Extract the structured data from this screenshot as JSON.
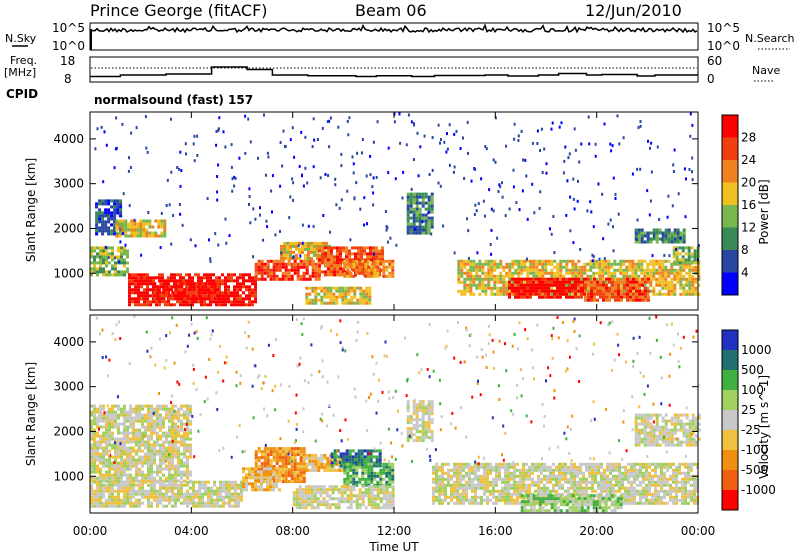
{
  "header": {
    "station": "Prince George (fitACF)",
    "beam": "Beam 06",
    "date": "12/Jun/2010"
  },
  "left_labels": {
    "nsky": "N.Sky",
    "freq": "Freq.",
    "freq_unit": "[MHz]",
    "cpid": "CPID"
  },
  "right_labels": {
    "nsearch": "N.Search",
    "nave": "Nave"
  },
  "cpid_text": "normalsound (fast) 157",
  "colors": {
    "power": [
      "#0000ff",
      "#2747a0",
      "#3a8a57",
      "#78b64e",
      "#f0c020",
      "#f08020",
      "#f04010",
      "#ff0000"
    ],
    "velocity": [
      "#ff0000",
      "#f06010",
      "#f09010",
      "#f0c040",
      "#c8c8c8",
      "#a0d060",
      "#40b040",
      "#207070",
      "#2030c0"
    ]
  },
  "chart_data": [
    {
      "type": "line",
      "panel": "noise",
      "y_ticks_left": [
        "10^5",
        "10^0"
      ],
      "y_ticks_right": [
        "10^5",
        "10^0"
      ],
      "x_range": [
        0,
        24
      ]
    },
    {
      "type": "line",
      "panel": "frequency",
      "y_ticks_left": [
        "18",
        "8"
      ],
      "y_ticks_right": [
        "60",
        "0"
      ],
      "x_range": [
        0,
        24
      ],
      "ylim_left": [
        8,
        18
      ],
      "series": [
        {
          "x": [
            0,
            1.2,
            1.2,
            3.0,
            3.0,
            4.8,
            4.8,
            6.2,
            6.2,
            7.2,
            7.2,
            8.6,
            8.6,
            10.5,
            10.5,
            11.3,
            11.3,
            12.7,
            12.7,
            13.6,
            13.6,
            15.6,
            15.6,
            16.5,
            16.5,
            17.7,
            17.7,
            18.5,
            18.5,
            19.6,
            19.6,
            20.2,
            20.2,
            21.6,
            21.6,
            22.3,
            22.3,
            24
          ],
          "values": [
            10.2,
            10.2,
            10.8,
            10.8,
            11.2,
            11.2,
            14.0,
            14.0,
            13.0,
            13.0,
            10.8,
            10.8,
            10.5,
            10.5,
            10.2,
            10.2,
            10.5,
            10.5,
            10.2,
            10.2,
            10.6,
            10.6,
            10.8,
            10.8,
            10.4,
            10.4,
            10.8,
            10.8,
            11.4,
            11.4,
            10.8,
            10.8,
            11.0,
            11.0,
            10.4,
            10.4,
            10.8,
            10.8
          ]
        }
      ]
    },
    {
      "type": "heatmap",
      "panel": "power",
      "xlabel": "",
      "ylabel": "Slant Range [km]",
      "x_ticks": [],
      "y_ticks": [
        "1000",
        "2000",
        "3000",
        "4000"
      ],
      "ylim": [
        180,
        4600
      ],
      "x_range": [
        0,
        24
      ],
      "colorbar_label": "Power [dB]",
      "colorbar_ticks": [
        "4",
        "8",
        "12",
        "16",
        "20",
        "24",
        "28"
      ],
      "regions": [
        {
          "x": [
            0.0,
            1.5
          ],
          "y": [
            950,
            1600
          ],
          "level": 3
        },
        {
          "x": [
            0.2,
            1.2
          ],
          "y": [
            1900,
            2650
          ],
          "level": 1
        },
        {
          "x": [
            1.0,
            3.0
          ],
          "y": [
            1800,
            2200
          ],
          "level": 4
        },
        {
          "x": [
            1.5,
            6.5
          ],
          "y": [
            300,
            1000
          ],
          "level": 7
        },
        {
          "x": [
            2.5,
            5.0
          ],
          "y": [
            400,
            800
          ],
          "level": 7
        },
        {
          "x": [
            6.5,
            9.0
          ],
          "y": [
            850,
            1300
          ],
          "level": 6
        },
        {
          "x": [
            7.5,
            9.5
          ],
          "y": [
            1350,
            1700
          ],
          "level": 4
        },
        {
          "x": [
            9.0,
            11.5
          ],
          "y": [
            950,
            1600
          ],
          "level": 6
        },
        {
          "x": [
            10.0,
            12.0
          ],
          "y": [
            900,
            1300
          ],
          "level": 5
        },
        {
          "x": [
            8.5,
            11.0
          ],
          "y": [
            350,
            700
          ],
          "level": 4
        },
        {
          "x": [
            12.5,
            13.5
          ],
          "y": [
            1900,
            2800
          ],
          "level": 2
        },
        {
          "x": [
            14.5,
            24.0
          ],
          "y": [
            500,
            1300
          ],
          "level": 4
        },
        {
          "x": [
            16.5,
            19.5
          ],
          "y": [
            450,
            900
          ],
          "level": 7
        },
        {
          "x": [
            19.5,
            22.0
          ],
          "y": [
            400,
            900
          ],
          "level": 6
        },
        {
          "x": [
            21.5,
            23.5
          ],
          "y": [
            1700,
            2000
          ],
          "level": 2
        },
        {
          "x": [
            23.0,
            24.0
          ],
          "y": [
            1200,
            1600
          ],
          "level": 3
        }
      ]
    },
    {
      "type": "heatmap",
      "panel": "velocity",
      "xlabel": "Time UT",
      "ylabel": "Slant Range [km]",
      "x_ticks": [
        "00:00",
        "04:00",
        "08:00",
        "12:00",
        "16:00",
        "20:00",
        "00:00"
      ],
      "y_ticks": [
        "1000",
        "2000",
        "3000",
        "4000"
      ],
      "ylim": [
        180,
        4600
      ],
      "x_range": [
        0,
        24
      ],
      "colorbar_label": "Velocity [m s^-1]",
      "colorbar_ticks": [
        "-1000",
        "-500",
        "-100",
        "-25",
        "25",
        "100",
        "500",
        "1000"
      ],
      "regions": [
        {
          "x": [
            0.0,
            4.0
          ],
          "y": [
            900,
            2600
          ],
          "level": 4
        },
        {
          "x": [
            0.0,
            6.0
          ],
          "y": [
            300,
            900
          ],
          "level": 4
        },
        {
          "x": [
            6.5,
            8.5
          ],
          "y": [
            900,
            1650
          ],
          "level": 2
        },
        {
          "x": [
            6.0,
            7.5
          ],
          "y": [
            700,
            1200
          ],
          "level": 3
        },
        {
          "x": [
            8.5,
            10.0
          ],
          "y": [
            1100,
            1500
          ],
          "level": 3
        },
        {
          "x": [
            9.5,
            11.5
          ],
          "y": [
            1200,
            1600
          ],
          "level": 7
        },
        {
          "x": [
            10.0,
            12.0
          ],
          "y": [
            800,
            1300
          ],
          "level": 6
        },
        {
          "x": [
            12.5,
            13.5
          ],
          "y": [
            1800,
            2700
          ],
          "level": 4
        },
        {
          "x": [
            13.5,
            24.0
          ],
          "y": [
            400,
            1300
          ],
          "level": 4
        },
        {
          "x": [
            17.0,
            21.0
          ],
          "y": [
            250,
            600
          ],
          "level": 5
        },
        {
          "x": [
            21.5,
            24.0
          ],
          "y": [
            1700,
            2400
          ],
          "level": 4
        },
        {
          "x": [
            8.0,
            12.0
          ],
          "y": [
            300,
            800
          ],
          "level": 4
        }
      ]
    }
  ]
}
